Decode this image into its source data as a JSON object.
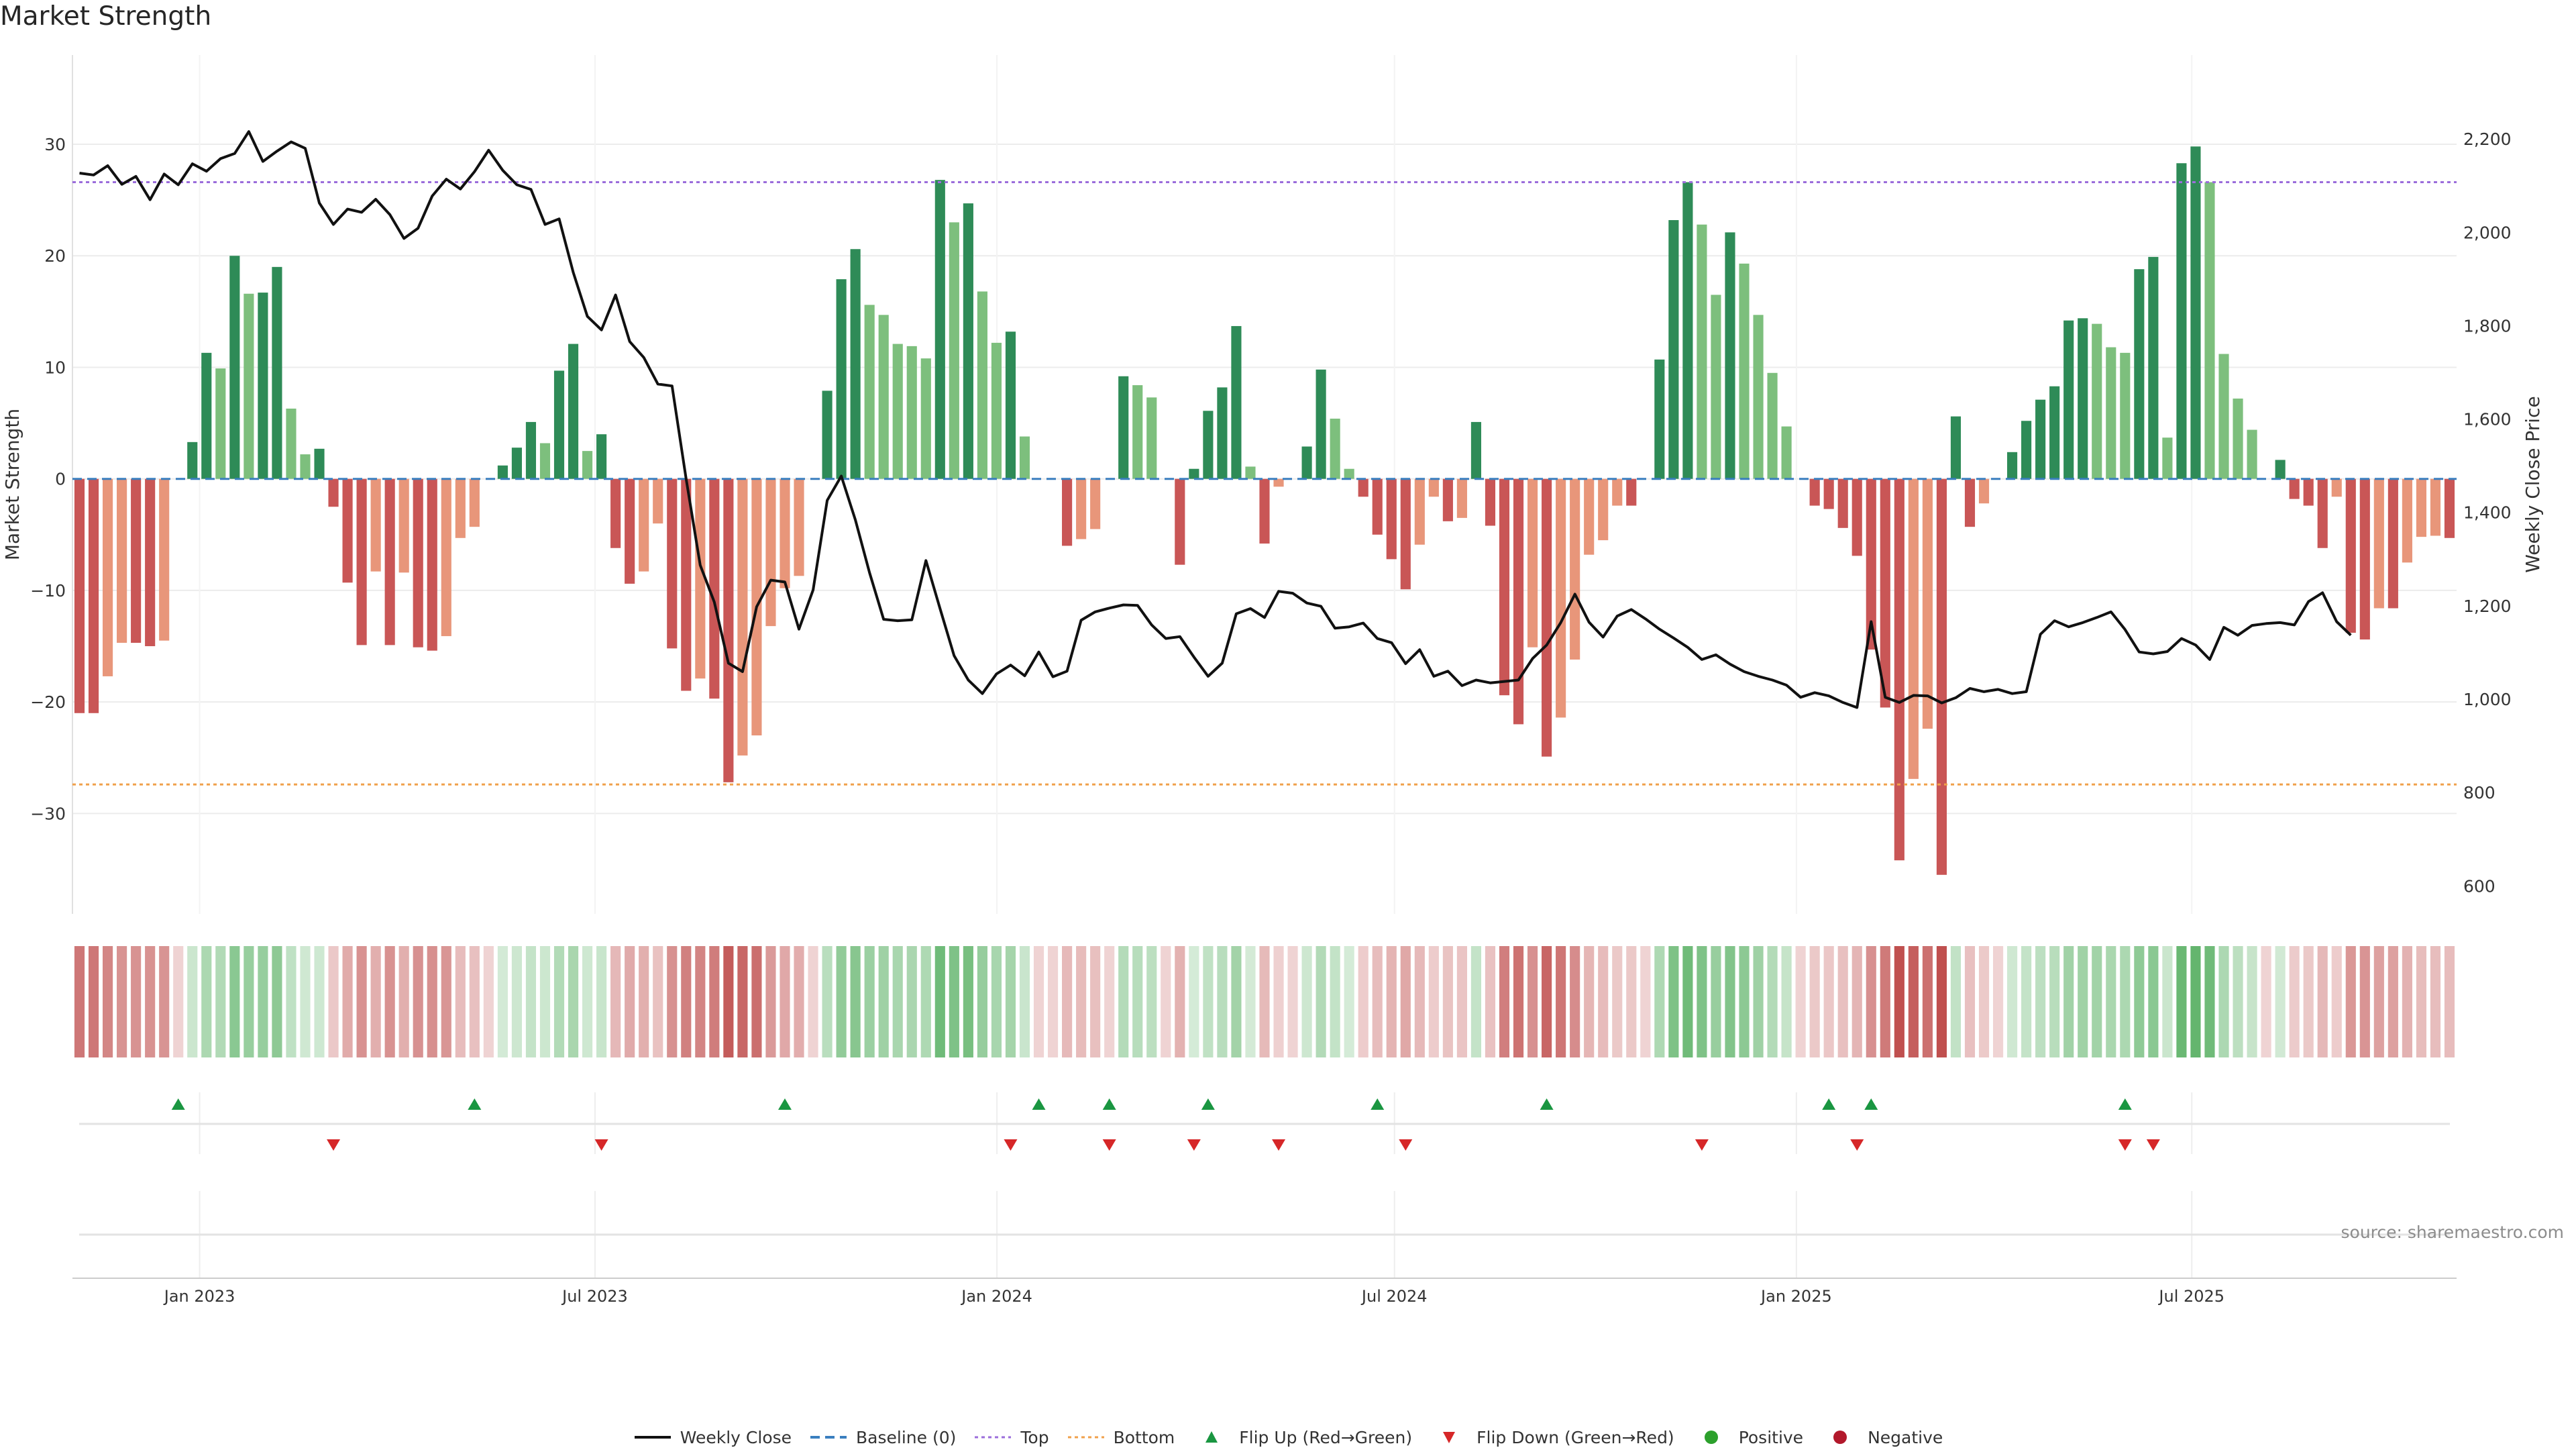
{
  "chart_data": {
    "type": "bar",
    "title": "Market Strength",
    "ylabel_left": "Market Strength",
    "ylabel_right": "Weekly Close Price",
    "ylim_left": [
      -39,
      38
    ],
    "ylim_right": [
      540,
      2380
    ],
    "yticks_left": [
      30,
      20,
      10,
      0,
      -10,
      -20,
      -30
    ],
    "yticks_left_labels": [
      "30",
      "20",
      "10",
      "0",
      "−10",
      "−20",
      "−30"
    ],
    "yticks_right": [
      2200,
      2000,
      1800,
      1600,
      1400,
      1200,
      1000,
      800,
      600
    ],
    "yticks_right_labels": [
      "2,200",
      "2,000",
      "1,800",
      "1,600",
      "1,400",
      "1,200",
      "1,000",
      "800",
      "600"
    ],
    "x_start": "2022-11-07",
    "x_end": "2025-10-27",
    "xtick_dates": [
      "2023-01-01",
      "2023-07-01",
      "2024-01-01",
      "2024-07-01",
      "2025-01-01",
      "2025-07-01"
    ],
    "xtick_labels": [
      "Jan 2023",
      "Jul 2023",
      "Jan 2024",
      "Jul 2024",
      "Jan 2025",
      "Jul 2025"
    ],
    "top_level": 26.6,
    "bottom_level": -27.4,
    "strength": [
      -21,
      -21,
      -17.7,
      -14.7,
      -14.7,
      -15,
      -14.5,
      0,
      3.3,
      11.3,
      9.9,
      20,
      16.6,
      16.7,
      19,
      6.3,
      2.2,
      2.7,
      -2.5,
      -9.3,
      -14.9,
      -8.3,
      -14.9,
      -8.4,
      -15.1,
      -15.4,
      -14.1,
      -5.3,
      -4.3,
      0,
      1.2,
      2.8,
      5.1,
      3.2,
      9.7,
      12.1,
      2.5,
      4,
      -6.2,
      -9.4,
      -8.3,
      -4,
      -15.2,
      -19,
      -17.9,
      -19.7,
      -27.2,
      -24.8,
      -23,
      -13.2,
      -9.8,
      -8.7,
      0,
      7.9,
      17.9,
      20.6,
      15.6,
      14.7,
      12.1,
      11.9,
      10.8,
      26.8,
      23,
      24.7,
      16.8,
      12.2,
      13.2,
      3.8,
      0,
      0,
      -6,
      -5.4,
      -4.5,
      0,
      9.2,
      8.4,
      7.3,
      0,
      -7.7,
      0.9,
      6.1,
      8.2,
      13.7,
      1.1,
      -5.8,
      -0.7,
      0,
      2.9,
      9.8,
      5.4,
      0.9,
      -1.6,
      -5,
      -7.2,
      -9.9,
      -5.9,
      -1.6,
      -3.8,
      -3.5,
      5.1,
      -4.2,
      -19.4,
      -22,
      -15.1,
      -24.9,
      -21.4,
      -16.2,
      -6.8,
      -5.5,
      -2.4,
      -2.4,
      0,
      10.7,
      23.2,
      26.6,
      22.8,
      16.5,
      22.1,
      19.3,
      14.7,
      9.5,
      4.7,
      0,
      -2.4,
      -2.7,
      -4.4,
      -6.9,
      -15.3,
      -20.5,
      -34.2,
      -26.9,
      -22.4,
      -35.5,
      5.6,
      -4.3,
      -2.2,
      0,
      2.4,
      5.2,
      7.1,
      8.3,
      14.2,
      14.4,
      13.9,
      11.8,
      11.3,
      18.8,
      19.9,
      3.7,
      28.3,
      29.8,
      26.6,
      11.2,
      7.2,
      4.4,
      0,
      1.7,
      -1.8,
      -2.4,
      -6.2,
      -1.6,
      -13.8,
      -14.4,
      -11.6,
      -11.6,
      -7.5,
      -5.2,
      -5.1,
      -5.3
    ],
    "weekly_close": [
      2127,
      2123,
      2143,
      2103,
      2120,
      2070,
      2125,
      2102,
      2147,
      2131,
      2158,
      2169,
      2216,
      2152,
      2174,
      2194,
      2180,
      2063,
      2017,
      2050,
      2043,
      2071,
      2038,
      1987,
      2009,
      2078,
      2114,
      2093,
      2130,
      2176,
      2133,
      2102,
      2092,
      2017,
      2029,
      1914,
      1820,
      1791,
      1866,
      1766,
      1732,
      1675,
      1671,
      1472,
      1287,
      1208,
      1077,
      1059,
      1198,
      1255,
      1251,
      1150,
      1234,
      1426,
      1478,
      1384,
      1271,
      1171,
      1168,
      1170,
      1297,
      1194,
      1093,
      1041,
      1012,
      1054,
      1073,
      1050,
      1101,
      1048,
      1060,
      1169,
      1187,
      1195,
      1202,
      1201,
      1159,
      1130,
      1134,
      1090,
      1049,
      1077,
      1183,
      1194,
      1175,
      1231,
      1227,
      1206,
      1199,
      1152,
      1155,
      1163,
      1130,
      1121,
      1076,
      1106,
      1049,
      1060,
      1029,
      1041,
      1035,
      1038,
      1041,
      1087,
      1116,
      1164,
      1225,
      1165,
      1133,
      1178,
      1192,
      1172,
      1150,
      1131,
      1111,
      1085,
      1095,
      1075,
      1059,
      1049,
      1041,
      1030,
      1004,
      1014,
      1007,
      993,
      982,
      1166,
      1004,
      993,
      1008,
      1007,
      992,
      1003,
      1023,
      1016,
      1021,
      1012,
      1016,
      1139,
      1168,
      1155,
      1164,
      1175,
      1187,
      1149,
      1101,
      1097,
      1102,
      1130,
      1116,
      1085,
      1154,
      1137,
      1158,
      1162,
      1164,
      1159,
      1209,
      1228,
      1166,
      1137
    ],
    "flip_up_indices": [
      7,
      28,
      50,
      68,
      73,
      80,
      92,
      104,
      124,
      127,
      145
    ],
    "flip_down_indices": [
      18,
      37,
      66,
      73,
      79,
      85,
      94,
      115,
      126,
      145,
      147
    ],
    "sentiment_strip": {
      "up_color_strong": "#63b56d",
      "down_color_strong": "#c0504f"
    },
    "legend": [
      "Weekly Close",
      "Baseline (0)",
      "Top",
      "Bottom",
      "Flip Up (Red→Green)",
      "Flip Down (Green→Red)",
      "Positive",
      "Negative"
    ]
  },
  "source_note": "source: sharemaestro.com",
  "colors": {
    "bar_green_dark": "#2e8b57",
    "bar_green_light": "#7dbf7d",
    "bar_red_dark": "#c95656",
    "bar_red_light": "#e8967a",
    "close_line": "#111111",
    "baseline": "#3a7fbf",
    "top_line": "#9b6ddb",
    "bottom_line": "#f0a04b",
    "flip_up": "#1a9641",
    "flip_down": "#d62728",
    "positive": "#2ca02c",
    "negative": "#b2182b"
  }
}
